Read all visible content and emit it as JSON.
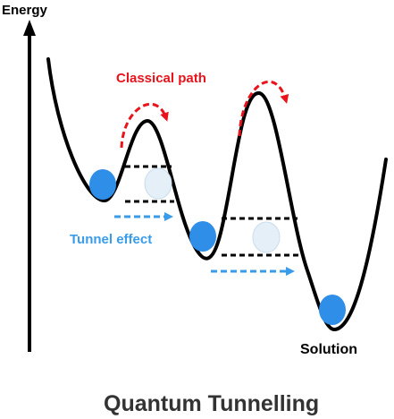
{
  "axis": {
    "label": "Energy"
  },
  "annotations": {
    "classical_path": "Classical path",
    "tunnel_effect": "Tunnel effect",
    "solution": "Solution"
  },
  "title": "Quantum Tunnelling",
  "colors": {
    "curve": "#000000",
    "classical_arrow": "#e8131b",
    "tunnel_arrow": "#3a9ce8",
    "ball": "#2f8ee8",
    "ghost_ball": "#e4eff8",
    "barrier_line": "#000000"
  }
}
